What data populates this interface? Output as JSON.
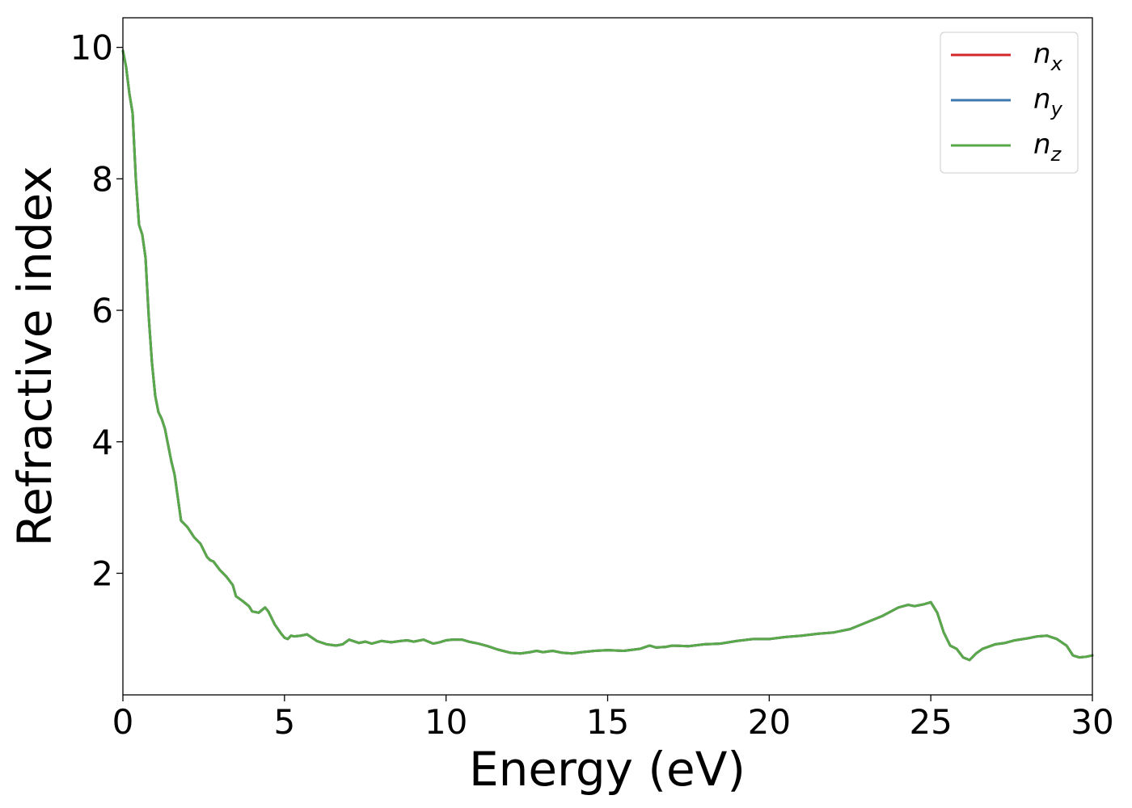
{
  "chart_data": {
    "type": "line",
    "xlabel": "Energy (eV)",
    "ylabel": "Refractive index",
    "xlim": [
      0,
      30
    ],
    "ylim": [
      0.15,
      10.45
    ],
    "xticks": [
      0,
      5,
      10,
      15,
      20,
      25,
      30
    ],
    "xtick_labels": [
      "0",
      "5",
      "10",
      "15",
      "20",
      "25",
      "30"
    ],
    "yticks": [
      2,
      4,
      6,
      8,
      10
    ],
    "ytick_labels": [
      "2",
      "4",
      "6",
      "8",
      "10"
    ],
    "grid": false,
    "legend_position": "top-right",
    "x": [
      0.0,
      0.1,
      0.2,
      0.3,
      0.4,
      0.5,
      0.6,
      0.7,
      0.8,
      0.9,
      1.0,
      1.1,
      1.2,
      1.3,
      1.4,
      1.5,
      1.6,
      1.7,
      1.8,
      1.9,
      2.0,
      2.2,
      2.4,
      2.5,
      2.6,
      2.7,
      2.8,
      3.0,
      3.2,
      3.4,
      3.5,
      3.7,
      3.9,
      4.0,
      4.2,
      4.4,
      4.5,
      4.7,
      4.9,
      5.0,
      5.1,
      5.2,
      5.3,
      5.5,
      5.7,
      6.0,
      6.3,
      6.6,
      6.8,
      7.0,
      7.3,
      7.5,
      7.7,
      8.0,
      8.3,
      8.6,
      8.8,
      9.0,
      9.3,
      9.6,
      9.8,
      10.0,
      10.2,
      10.5,
      10.7,
      11.0,
      11.3,
      11.6,
      12.0,
      12.3,
      12.6,
      12.8,
      13.0,
      13.3,
      13.6,
      13.9,
      14.2,
      14.6,
      15.0,
      15.5,
      16.0,
      16.3,
      16.5,
      16.8,
      17.0,
      17.5,
      18.0,
      18.5,
      19.0,
      19.5,
      20.0,
      20.5,
      21.0,
      21.5,
      22.0,
      22.5,
      23.0,
      23.5,
      24.0,
      24.3,
      24.5,
      24.8,
      25.0,
      25.2,
      25.4,
      25.6,
      25.8,
      26.0,
      26.2,
      26.4,
      26.6,
      27.0,
      27.3,
      27.6,
      28.0,
      28.3,
      28.6,
      28.9,
      29.2,
      29.4,
      29.6,
      29.8,
      30.0
    ],
    "series": [
      {
        "name": "n",
        "subscript": "x",
        "color": "#d62728",
        "values": [
          9.95,
          9.7,
          9.3,
          9.0,
          8.0,
          7.3,
          7.15,
          6.8,
          5.9,
          5.2,
          4.7,
          4.45,
          4.35,
          4.2,
          3.95,
          3.7,
          3.5,
          3.15,
          2.8,
          2.75,
          2.7,
          2.55,
          2.45,
          2.35,
          2.25,
          2.2,
          2.18,
          2.05,
          1.95,
          1.82,
          1.65,
          1.58,
          1.5,
          1.42,
          1.4,
          1.48,
          1.42,
          1.22,
          1.08,
          1.02,
          1.0,
          1.05,
          1.04,
          1.05,
          1.07,
          0.97,
          0.92,
          0.9,
          0.92,
          0.99,
          0.94,
          0.96,
          0.93,
          0.97,
          0.95,
          0.97,
          0.98,
          0.96,
          0.99,
          0.93,
          0.95,
          0.98,
          0.99,
          0.99,
          0.96,
          0.93,
          0.89,
          0.84,
          0.79,
          0.78,
          0.8,
          0.82,
          0.8,
          0.82,
          0.79,
          0.78,
          0.8,
          0.82,
          0.83,
          0.82,
          0.85,
          0.9,
          0.87,
          0.88,
          0.9,
          0.89,
          0.92,
          0.93,
          0.97,
          1.0,
          1.0,
          1.03,
          1.05,
          1.08,
          1.1,
          1.15,
          1.25,
          1.35,
          1.48,
          1.52,
          1.5,
          1.53,
          1.56,
          1.4,
          1.1,
          0.9,
          0.85,
          0.72,
          0.68,
          0.78,
          0.85,
          0.92,
          0.94,
          0.98,
          1.01,
          1.04,
          1.05,
          1.0,
          0.9,
          0.75,
          0.72,
          0.73,
          0.75
        ]
      },
      {
        "name": "n",
        "subscript": "y",
        "color": "#3a78ae",
        "values": [
          9.95,
          9.7,
          9.3,
          9.0,
          8.0,
          7.3,
          7.15,
          6.8,
          5.9,
          5.2,
          4.7,
          4.45,
          4.35,
          4.2,
          3.95,
          3.7,
          3.5,
          3.15,
          2.8,
          2.75,
          2.7,
          2.55,
          2.45,
          2.35,
          2.25,
          2.2,
          2.18,
          2.05,
          1.95,
          1.82,
          1.65,
          1.58,
          1.5,
          1.42,
          1.4,
          1.48,
          1.42,
          1.22,
          1.08,
          1.02,
          1.0,
          1.05,
          1.04,
          1.05,
          1.07,
          0.97,
          0.92,
          0.9,
          0.92,
          0.99,
          0.94,
          0.96,
          0.93,
          0.97,
          0.95,
          0.97,
          0.98,
          0.96,
          0.99,
          0.93,
          0.95,
          0.98,
          0.99,
          0.99,
          0.96,
          0.93,
          0.89,
          0.84,
          0.79,
          0.78,
          0.8,
          0.82,
          0.8,
          0.82,
          0.79,
          0.78,
          0.8,
          0.82,
          0.83,
          0.82,
          0.85,
          0.9,
          0.87,
          0.88,
          0.9,
          0.89,
          0.92,
          0.93,
          0.97,
          1.0,
          1.0,
          1.03,
          1.05,
          1.08,
          1.1,
          1.15,
          1.25,
          1.35,
          1.48,
          1.52,
          1.5,
          1.53,
          1.56,
          1.4,
          1.1,
          0.9,
          0.85,
          0.72,
          0.68,
          0.78,
          0.85,
          0.92,
          0.94,
          0.98,
          1.01,
          1.04,
          1.05,
          1.0,
          0.9,
          0.75,
          0.72,
          0.73,
          0.75
        ]
      },
      {
        "name": "n",
        "subscript": "z",
        "color": "#59a84a",
        "values": [
          9.95,
          9.7,
          9.3,
          9.0,
          8.0,
          7.3,
          7.15,
          6.8,
          5.9,
          5.2,
          4.7,
          4.45,
          4.35,
          4.2,
          3.95,
          3.7,
          3.5,
          3.15,
          2.8,
          2.75,
          2.7,
          2.55,
          2.45,
          2.35,
          2.25,
          2.2,
          2.18,
          2.05,
          1.95,
          1.82,
          1.65,
          1.58,
          1.5,
          1.42,
          1.4,
          1.48,
          1.42,
          1.22,
          1.08,
          1.02,
          1.0,
          1.05,
          1.04,
          1.05,
          1.07,
          0.97,
          0.92,
          0.9,
          0.92,
          0.99,
          0.94,
          0.96,
          0.93,
          0.97,
          0.95,
          0.97,
          0.98,
          0.96,
          0.99,
          0.93,
          0.95,
          0.98,
          0.99,
          0.99,
          0.96,
          0.93,
          0.89,
          0.84,
          0.79,
          0.78,
          0.8,
          0.82,
          0.8,
          0.82,
          0.79,
          0.78,
          0.8,
          0.82,
          0.83,
          0.82,
          0.85,
          0.9,
          0.87,
          0.88,
          0.9,
          0.89,
          0.92,
          0.93,
          0.97,
          1.0,
          1.0,
          1.03,
          1.05,
          1.08,
          1.1,
          1.15,
          1.25,
          1.35,
          1.48,
          1.52,
          1.5,
          1.53,
          1.56,
          1.4,
          1.1,
          0.9,
          0.85,
          0.72,
          0.68,
          0.78,
          0.85,
          0.92,
          0.94,
          0.98,
          1.01,
          1.04,
          1.05,
          1.0,
          0.9,
          0.75,
          0.72,
          0.73,
          0.75
        ]
      }
    ]
  }
}
